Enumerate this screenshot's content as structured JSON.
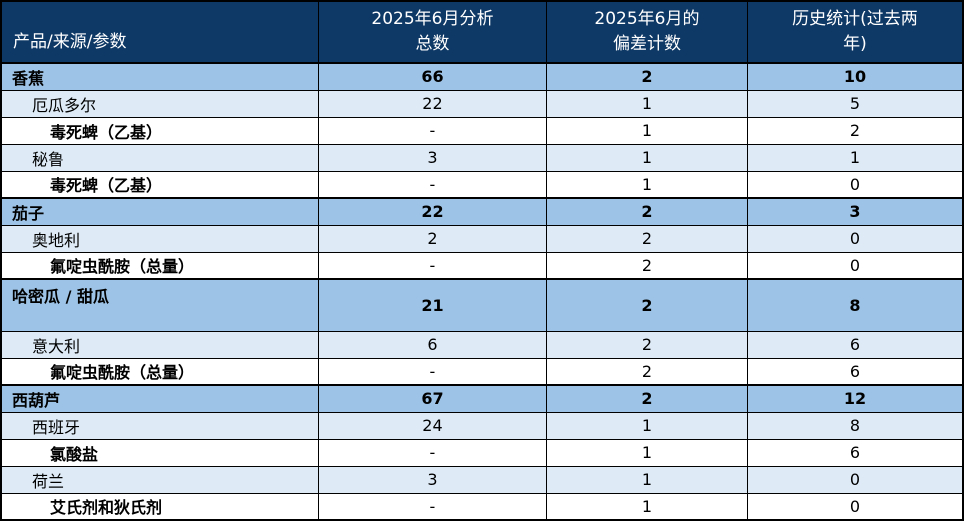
{
  "colors": {
    "header_bg": "#0E3865",
    "header_text": "#FFFFFF",
    "category_row_bg": "#9DC3E6",
    "country_row_bg": "#DEEBF7",
    "parameter_row_bg": "#FFFFFF",
    "border": "#000000",
    "body_text": "#000000"
  },
  "table": {
    "columns": [
      {
        "label": "产品/来源/参数"
      },
      {
        "label": "2025年6月分析\n总数"
      },
      {
        "label": "2025年6月的\n偏差计数"
      },
      {
        "label": "历史统计(过去两\n年)"
      }
    ],
    "rows": [
      {
        "type": "category",
        "label": "香蕉",
        "analyzed": "66",
        "deviation": "2",
        "history": "10"
      },
      {
        "type": "country",
        "label": "厄瓜多尔",
        "analyzed": "22",
        "deviation": "1",
        "history": "5"
      },
      {
        "type": "parameter",
        "label": "毒死蜱（乙基）",
        "analyzed": "-",
        "deviation": "1",
        "history": "2"
      },
      {
        "type": "country",
        "label": "秘鲁",
        "analyzed": "3",
        "deviation": "1",
        "history": "1"
      },
      {
        "type": "parameter",
        "label": "毒死蜱（乙基）",
        "analyzed": "-",
        "deviation": "1",
        "history": "0"
      },
      {
        "type": "category",
        "label": "茄子",
        "analyzed": "22",
        "deviation": "2",
        "history": "3"
      },
      {
        "type": "country",
        "label": "奥地利",
        "analyzed": "2",
        "deviation": "2",
        "history": "0"
      },
      {
        "type": "parameter",
        "label": "氟啶虫酰胺（总量）",
        "analyzed": "-",
        "deviation": "2",
        "history": "0"
      },
      {
        "type": "category",
        "label": "哈密瓜 / 甜瓜",
        "analyzed": "21",
        "deviation": "2",
        "history": "8",
        "tall": true
      },
      {
        "type": "country",
        "label": "意大利",
        "analyzed": "6",
        "deviation": "2",
        "history": "6"
      },
      {
        "type": "parameter",
        "label": "氟啶虫酰胺（总量）",
        "analyzed": "-",
        "deviation": "2",
        "history": "6"
      },
      {
        "type": "category",
        "label": "西葫芦",
        "analyzed": "67",
        "deviation": "2",
        "history": "12"
      },
      {
        "type": "country",
        "label": "西班牙",
        "analyzed": "24",
        "deviation": "1",
        "history": "8"
      },
      {
        "type": "parameter",
        "label": "氯酸盐",
        "analyzed": "-",
        "deviation": "1",
        "history": "6"
      },
      {
        "type": "country",
        "label": "荷兰",
        "analyzed": "3",
        "deviation": "1",
        "history": "0"
      },
      {
        "type": "parameter",
        "label": "艾氏剂和狄氏剂",
        "analyzed": "-",
        "deviation": "1",
        "history": "0"
      }
    ]
  }
}
